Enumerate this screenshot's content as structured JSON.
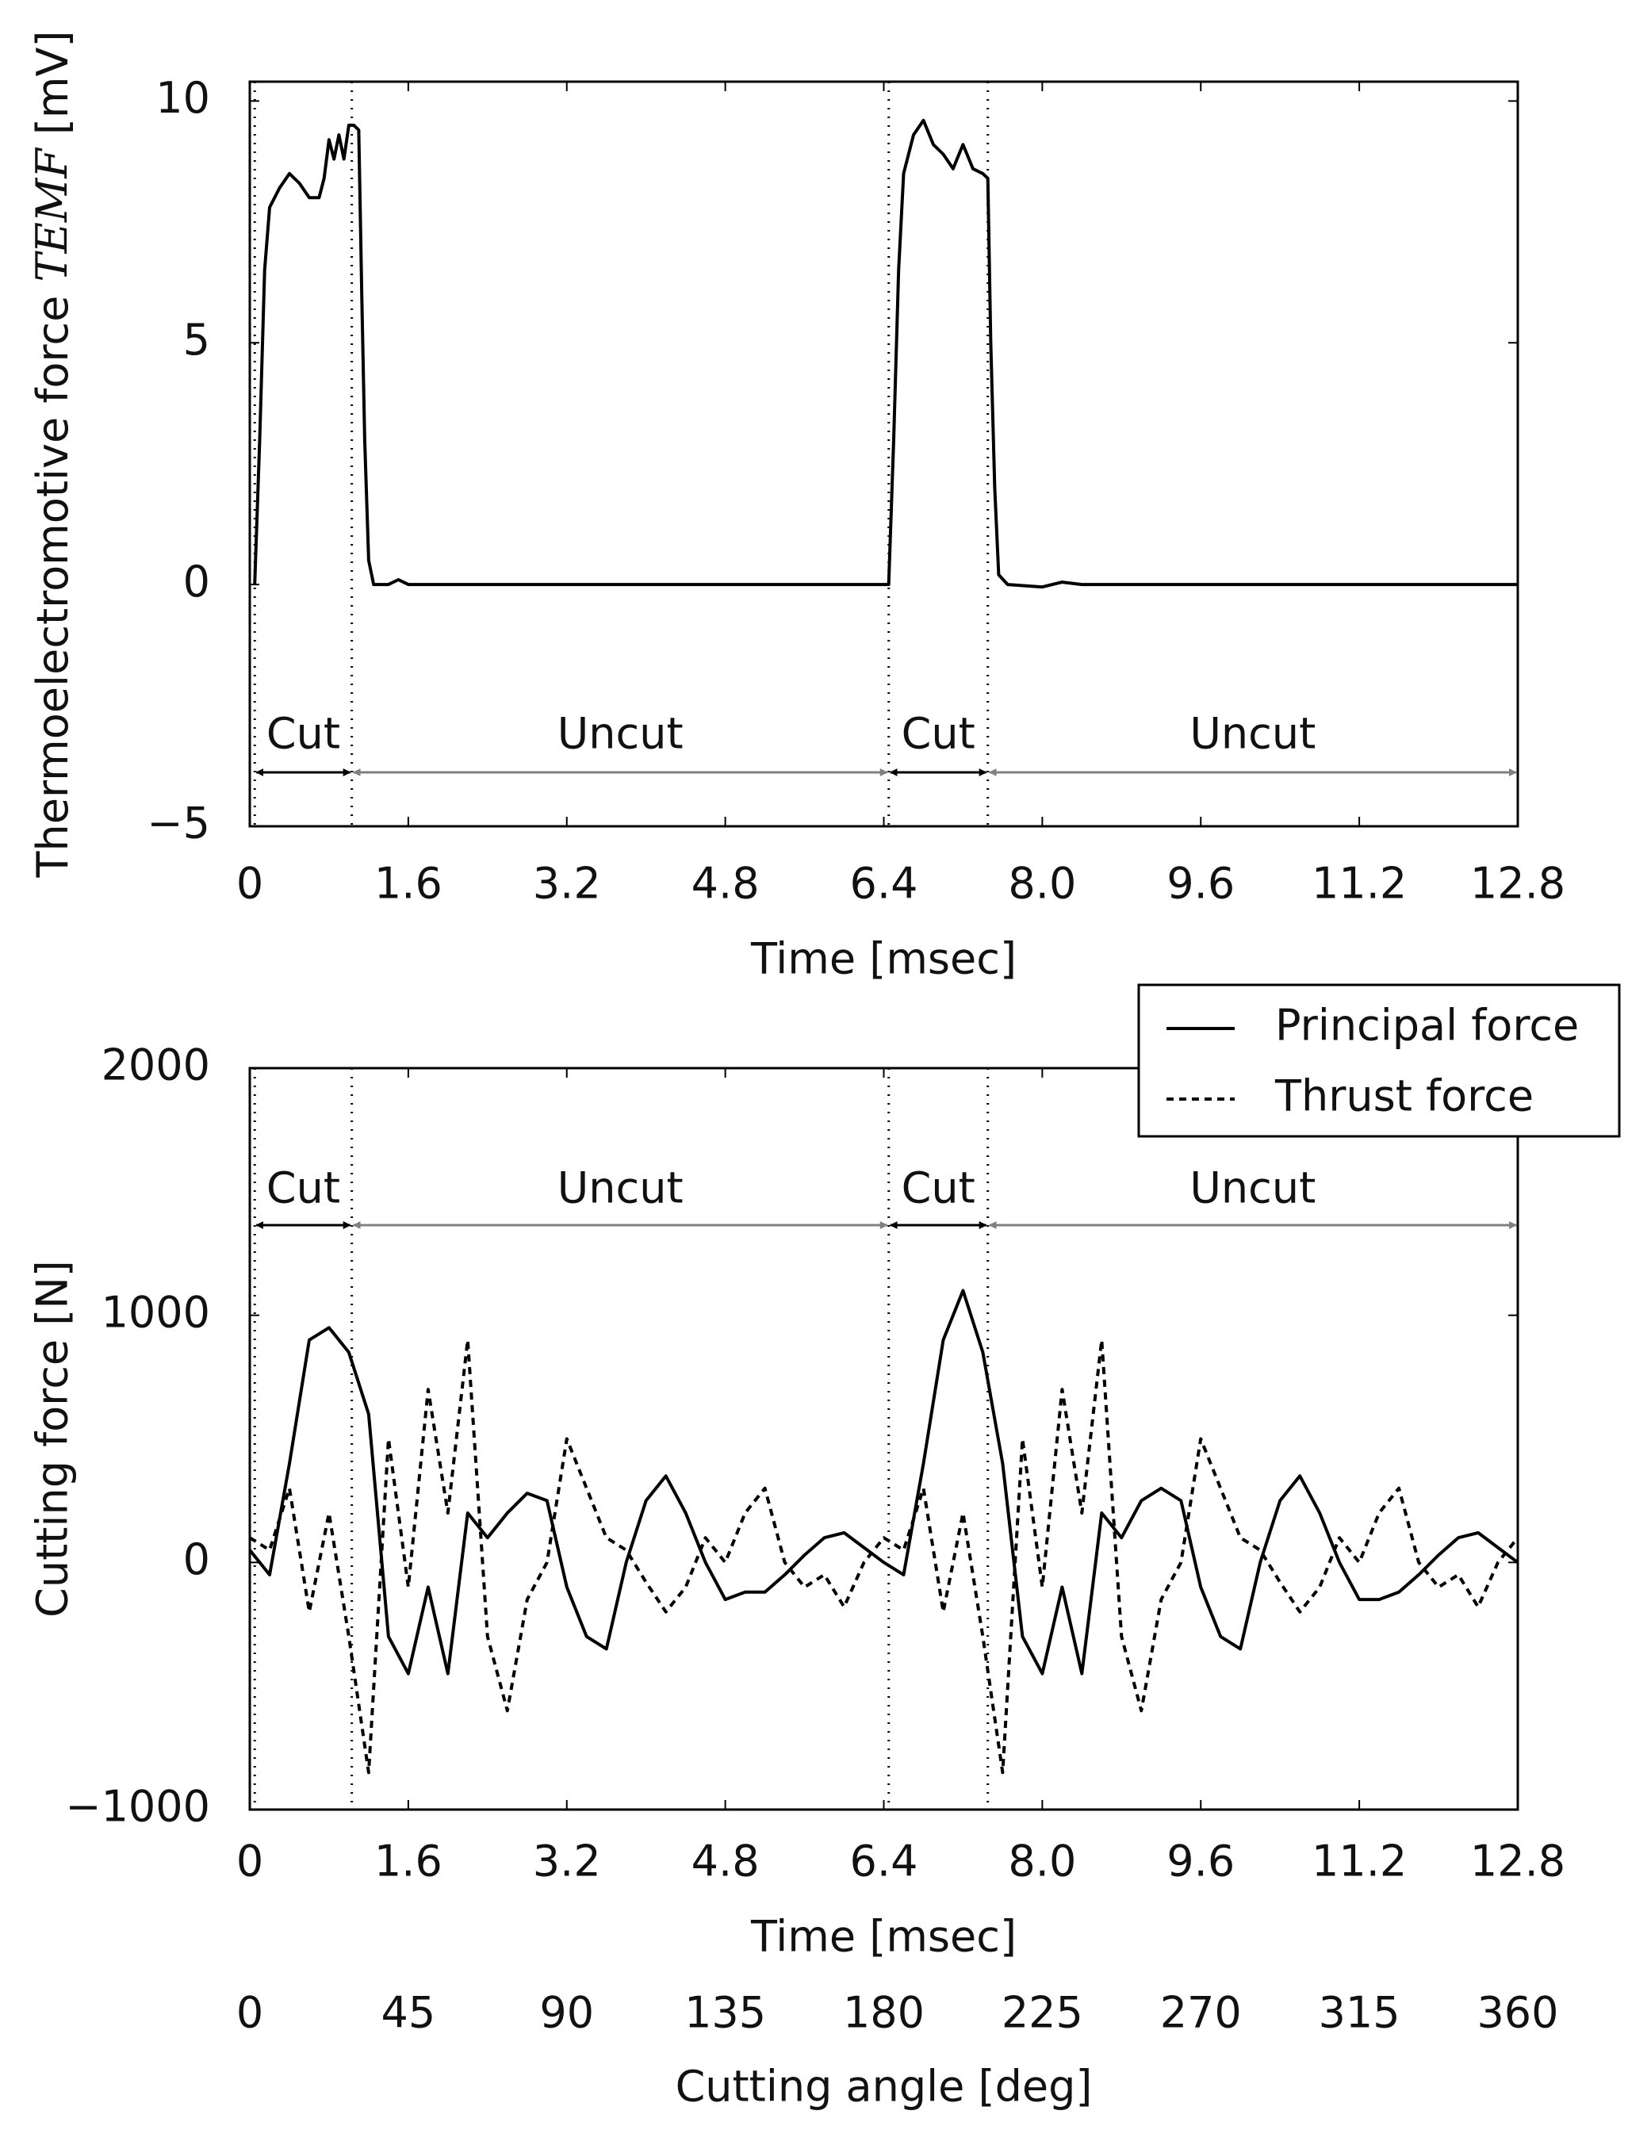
{
  "chart_data": [
    {
      "type": "line",
      "ylabel": [
        "Thermoelectromotive force",
        "TEMF",
        "[mV]"
      ],
      "xlabel": "Time [msec]",
      "xlim": [
        0,
        12.8
      ],
      "ylim": [
        -5,
        10.4
      ],
      "xticks": [
        0,
        1.6,
        3.2,
        4.8,
        6.4,
        {
          "value": 8,
          "label": "8.0"
        },
        9.6,
        11.2,
        12.8
      ],
      "yticks": [
        {
          "value": -5,
          "label": "−5"
        },
        0,
        5,
        10
      ],
      "x": [
        0.05,
        0.1,
        0.15,
        0.2,
        0.3,
        0.4,
        0.5,
        0.6,
        0.7,
        0.75,
        0.8,
        0.85,
        0.9,
        0.95,
        1.0,
        1.05,
        1.1,
        1.13,
        1.16,
        1.2,
        1.25,
        1.4,
        1.5,
        1.6,
        2.0,
        3.0,
        4.0,
        5.0,
        6.0,
        6.45,
        6.5,
        6.55,
        6.6,
        6.7,
        6.8,
        6.9,
        7.0,
        7.1,
        7.2,
        7.3,
        7.4,
        7.45,
        7.48,
        7.52,
        7.56,
        7.65,
        8.0,
        8.2,
        8.4,
        9.0,
        10.0,
        11.0,
        12.0,
        12.8
      ],
      "series": [
        {
          "color": "#000000",
          "style": "solid",
          "values": [
            0,
            3,
            6.5,
            7.8,
            8.2,
            8.5,
            8.3,
            8,
            8,
            8.4,
            9.2,
            8.8,
            9.3,
            8.8,
            9.5,
            9.5,
            9.4,
            6,
            3,
            0.5,
            0,
            0,
            0.1,
            0,
            0,
            0,
            0,
            0,
            0,
            0,
            3,
            6.5,
            8.5,
            9.3,
            9.6,
            9.1,
            8.9,
            8.6,
            9.1,
            8.6,
            8.5,
            8.4,
            5,
            2,
            0.2,
            0,
            -0.05,
            0.05,
            0,
            0,
            0,
            0,
            0,
            0
          ]
        }
      ],
      "regions": [
        {
          "text": "Cut",
          "start": 0.05,
          "end": 1.03,
          "color": "#000000"
        },
        {
          "text": "Uncut",
          "start": 1.03,
          "end": 6.45,
          "color": "#808080"
        },
        {
          "text": "Cut",
          "start": 6.45,
          "end": 7.45,
          "color": "#000000"
        },
        {
          "text": "Uncut",
          "start": 7.45,
          "end": 12.8,
          "color": "#808080"
        }
      ]
    },
    {
      "type": "line",
      "ylabel": "Cutting force  [N]",
      "xlabel": "Time [msec]",
      "x2label": "Cutting angle [deg]",
      "xlim": [
        0,
        12.8
      ],
      "ylim": [
        -1000,
        2000
      ],
      "x2lim": [
        0,
        360
      ],
      "xticks": [
        0,
        1.6,
        3.2,
        4.8,
        6.4,
        {
          "value": 8,
          "label": "8.0"
        },
        9.6,
        11.2,
        12.8
      ],
      "x2ticks": [
        0,
        45,
        90,
        135,
        180,
        225,
        270,
        315,
        360
      ],
      "yticks": [
        {
          "value": -1000,
          "label": "−1000"
        },
        0,
        1000,
        2000
      ],
      "x": [
        0,
        0.2,
        0.4,
        0.6,
        0.8,
        1.0,
        1.2,
        1.4,
        1.6,
        1.8,
        2.0,
        2.2,
        2.4,
        2.6,
        2.8,
        3.0,
        3.2,
        3.4,
        3.6,
        3.8,
        4.0,
        4.2,
        4.4,
        4.6,
        4.8,
        5.0,
        5.2,
        5.4,
        5.6,
        5.8,
        6.0,
        6.2,
        6.4,
        6.6,
        6.8,
        7.0,
        7.2,
        7.4,
        7.6,
        7.8,
        8.0,
        8.2,
        8.4,
        8.6,
        8.8,
        9.0,
        9.2,
        9.4,
        9.6,
        9.8,
        10.0,
        10.2,
        10.4,
        10.6,
        10.8,
        11.0,
        11.2,
        11.4,
        11.6,
        11.8,
        12.0,
        12.2,
        12.4,
        12.6,
        12.8
      ],
      "series": [
        {
          "name": "Principal force",
          "color": "#000000",
          "style": "solid",
          "values": [
            50,
            -50,
            400,
            900,
            950,
            850,
            600,
            -300,
            -450,
            -100,
            -450,
            200,
            100,
            200,
            280,
            250,
            -100,
            -300,
            -350,
            0,
            250,
            350,
            200,
            0,
            -150,
            -120,
            -120,
            -50,
            30,
            100,
            120,
            60,
            0,
            -50,
            400,
            900,
            1100,
            850,
            400,
            -300,
            -450,
            -100,
            -450,
            200,
            100,
            250,
            300,
            250,
            -100,
            -300,
            -350,
            0,
            250,
            350,
            200,
            0,
            -150,
            -150,
            -120,
            -50,
            30,
            100,
            120,
            60,
            0
          ]
        },
        {
          "name": "Thrust force",
          "color": "#000000",
          "style": "dashed",
          "values": [
            100,
            50,
            300,
            -200,
            200,
            -300,
            -850,
            500,
            -100,
            700,
            200,
            900,
            -300,
            -600,
            -150,
            0,
            500,
            300,
            100,
            50,
            -80,
            -200,
            -100,
            100,
            0,
            200,
            300,
            0,
            -100,
            -50,
            -180,
            0,
            100,
            50,
            300,
            -200,
            200,
            -300,
            -850,
            500,
            -100,
            700,
            200,
            900,
            -300,
            -600,
            -150,
            0,
            500,
            300,
            100,
            50,
            -80,
            -200,
            -100,
            100,
            0,
            200,
            300,
            0,
            -100,
            -50,
            -180,
            0,
            100
          ]
        }
      ],
      "regions": [
        {
          "text": "Cut",
          "start": 0.05,
          "end": 1.03,
          "color": "#000000"
        },
        {
          "text": "Uncut",
          "start": 1.03,
          "end": 6.45,
          "color": "#808080"
        },
        {
          "text": "Cut",
          "start": 6.45,
          "end": 7.45,
          "color": "#000000"
        },
        {
          "text": "Uncut",
          "start": 7.45,
          "end": 12.8,
          "color": "#808080"
        }
      ],
      "legend": "upper right"
    }
  ]
}
